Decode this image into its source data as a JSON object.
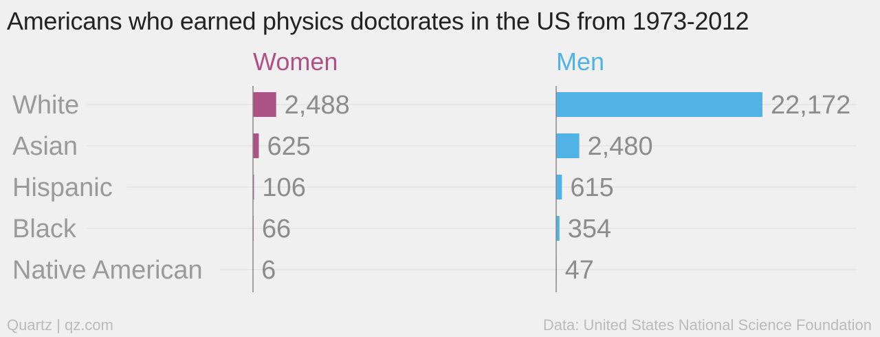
{
  "title": "Americans who earned physics doctorates in the US from 1973-2012",
  "source_left": "Quartz | qz.com",
  "source_right": "Data: United States National Science Foundation",
  "colors": {
    "women": "#ad5285",
    "men": "#51b2e5",
    "label": "#9a9a9a",
    "value": "#8c8c8c",
    "grid": "#e4e4e4",
    "axis": "#888888"
  },
  "chart_data": {
    "type": "bar",
    "orientation": "horizontal",
    "categories": [
      "White",
      "Asian",
      "Hispanic",
      "Black",
      "Native American"
    ],
    "series": [
      {
        "name": "Women",
        "values": [
          2488,
          625,
          106,
          66,
          6
        ],
        "labels": [
          "2,488",
          "625",
          "106",
          "66",
          "6"
        ]
      },
      {
        "name": "Men",
        "values": [
          22172,
          2480,
          615,
          354,
          47
        ],
        "labels": [
          "22,172",
          "2,480",
          "615",
          "354",
          "47"
        ]
      }
    ],
    "xlim": [
      0,
      22172
    ],
    "grid": true
  }
}
